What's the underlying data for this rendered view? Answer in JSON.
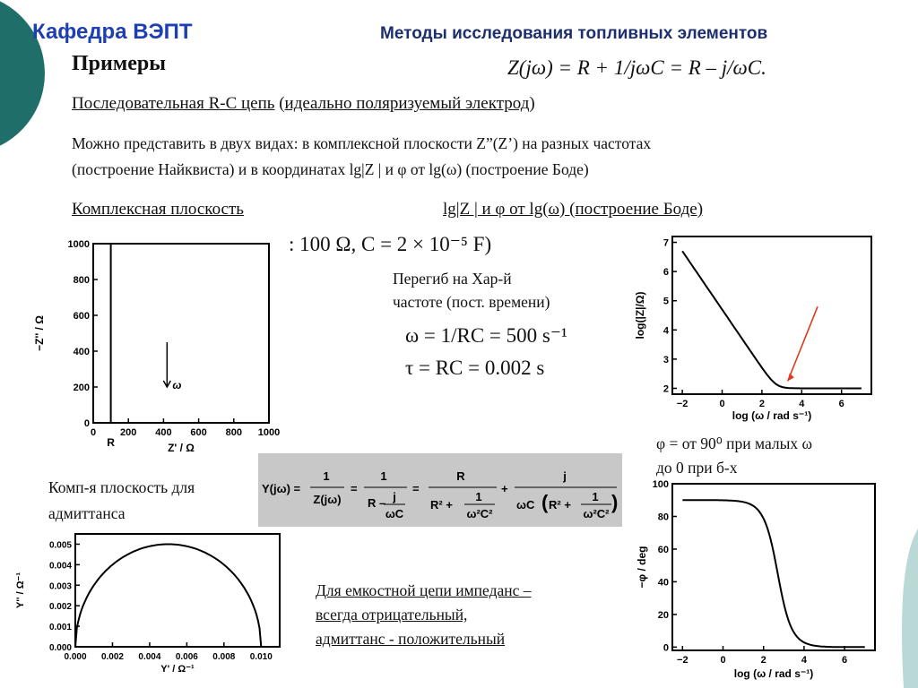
{
  "header": {
    "left_title": "Кафедра ВЭПТ",
    "right_title": "Методы исследования топливных элементов"
  },
  "section": {
    "title": "Примеры",
    "main_formula": "Z(jω) = R + 1/jωC = R – j/ωC.",
    "subtitle_a": "Последовательная R-C цепь",
    "subtitle_b": " (",
    "subtitle_c": "идеально поляризуемый электрод",
    "subtitle_d": ")",
    "desc_line1": "Можно представить в двух видах: в комплексной плоскости Z”(Z’) на разных частотах",
    "desc_line2": "(построение Найквиста) и в координатах lg|Z | и φ от lg(ω) (построение Боде)",
    "label_complex": "Комплексная плоскость",
    "label_bode": "lg|Z | и φ от lg(ω) (построение Боде)"
  },
  "params": {
    "rc_values": ": 100 Ω, C = 2 × 10⁻⁵  F)",
    "note_line1": "Перегиб на Хар-й",
    "note_line2": "частоте (пост. времени)",
    "omega_eq": "ω = 1/RC = 500 s⁻¹",
    "tau_eq": "τ = RC = 0.002 s"
  },
  "phase_note": {
    "line1": "φ = от 90⁰ при малых ω",
    "line2": "до 0 при б-х"
  },
  "admittance_label": {
    "line1": "Комп-я плоскость для",
    "line2": "адмиттанса"
  },
  "sign_note": {
    "line1": "Для емкостной цепи импеданс –",
    "line2": "всегда отрицательный,",
    "line3": "адмиттанс - положительный"
  },
  "formula_Y": {
    "lhs": "Y(jω) =",
    "f1_num": "1",
    "f1_den": "Z(jω)",
    "f2_num": "1",
    "f2_den_a": "R –",
    "f2_den_j": "j",
    "f2_den_wc": "ωC",
    "f3_num": "R",
    "f3_den_a": "R² +",
    "f3_den_1": "1",
    "f3_den_w": "ω²C²",
    "f4_num": "j",
    "f4_den_a": "ωC",
    "f4_den_b": "R² +",
    "f4_den_1": "1",
    "f4_den_w": "ω²C²"
  },
  "chart_data": [
    {
      "type": "line",
      "name": "nyquist",
      "xlabel": "Z' / Ω",
      "ylabel": "−Z'' / Ω",
      "xlim": [
        0,
        1000
      ],
      "ylim": [
        0,
        1000
      ],
      "xticks": [
        "0",
        "200",
        "400",
        "600",
        "800",
        "1000"
      ],
      "yticks": [
        "0",
        "200",
        "400",
        "600",
        "800",
        "1000"
      ],
      "x": [
        100,
        100
      ],
      "y": [
        0,
        1000
      ],
      "annotations": [
        "R",
        "ω"
      ]
    },
    {
      "type": "line",
      "name": "bode-magnitude",
      "xlabel": "log (ω / rad s⁻¹)",
      "ylabel": "log(|Z|/Ω)",
      "xlim": [
        -2.5,
        7.5
      ],
      "ylim": [
        1.8,
        7.2
      ],
      "xticks": [
        "−2",
        "0",
        "2",
        "4",
        "6"
      ],
      "yticks": [
        "2",
        "3",
        "4",
        "5",
        "6",
        "7"
      ],
      "x": [
        -2,
        -1,
        0,
        1,
        2,
        2.5,
        3,
        3.5,
        4,
        5,
        6,
        7
      ],
      "y": [
        7.0,
        6.0,
        5.0,
        4.0,
        3.0,
        2.5,
        2.15,
        2.05,
        2.02,
        2.0,
        2.0,
        2.0
      ]
    },
    {
      "type": "line",
      "name": "bode-phase",
      "xlabel": "log (ω / rad s⁻¹)",
      "ylabel": "−φ / deg",
      "xlim": [
        -2.5,
        7.5
      ],
      "ylim": [
        -2,
        100
      ],
      "xticks": [
        "−2",
        "0",
        "2",
        "4",
        "6"
      ],
      "yticks": [
        "0",
        "20",
        "40",
        "60",
        "80",
        "100"
      ],
      "x": [
        -2,
        -1,
        0,
        0.5,
        1,
        1.5,
        2,
        2.3,
        2.7,
        3,
        3.5,
        4,
        4.5,
        5,
        6,
        7
      ],
      "y": [
        90,
        90,
        89.8,
        89.4,
        88.3,
        84.5,
        74,
        65,
        45,
        32,
        13,
        4.5,
        1.5,
        0.5,
        0.1,
        0
      ]
    },
    {
      "type": "line",
      "name": "admittance",
      "xlabel": "Y' / Ω⁻¹",
      "ylabel": "Y'' / Ω⁻¹",
      "xlim": [
        0,
        0.011
      ],
      "ylim": [
        0,
        0.0055
      ],
      "xticks": [
        "0.000",
        "0.002",
        "0.004",
        "0.006",
        "0.008",
        "0.010"
      ],
      "yticks": [
        "0.000",
        "0.001",
        "0.002",
        "0.003",
        "0.004",
        "0.005"
      ],
      "x": [
        0,
        0.0005,
        0.001,
        0.002,
        0.003,
        0.004,
        0.005,
        0.006,
        0.007,
        0.008,
        0.009,
        0.0095,
        0.01
      ],
      "y": [
        0,
        0.00218,
        0.003,
        0.004,
        0.00458,
        0.0049,
        0.005,
        0.0049,
        0.00458,
        0.004,
        0.003,
        0.00218,
        0
      ]
    }
  ]
}
